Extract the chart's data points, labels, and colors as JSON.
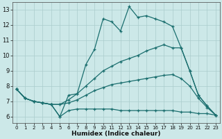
{
  "xlabel": "Humidex (Indice chaleur)",
  "bg_color": "#cce8e8",
  "grid_color": "#aacccc",
  "line_color": "#1a6e6e",
  "xlim": [
    -0.5,
    23.5
  ],
  "ylim": [
    5.6,
    13.5
  ],
  "xticks": [
    0,
    1,
    2,
    3,
    4,
    5,
    6,
    7,
    8,
    9,
    10,
    11,
    12,
    13,
    14,
    15,
    16,
    17,
    18,
    19,
    20,
    21,
    22,
    23
  ],
  "yticks": [
    6,
    7,
    8,
    9,
    10,
    11,
    12,
    13
  ],
  "lines": [
    {
      "x": [
        0,
        1,
        2,
        3,
        4,
        5,
        6,
        7,
        8,
        9,
        10,
        11,
        12,
        13,
        14,
        15,
        16,
        17,
        18,
        19,
        20,
        21,
        22,
        23
      ],
      "y": [
        7.8,
        7.2,
        7.0,
        6.9,
        6.8,
        6.0,
        7.4,
        7.5,
        9.4,
        10.4,
        12.4,
        12.2,
        11.6,
        13.2,
        12.5,
        12.6,
        12.4,
        12.2,
        11.9,
        10.5,
        9.0,
        7.4,
        6.7,
        6.1
      ]
    },
    {
      "x": [
        0,
        1,
        2,
        3,
        4,
        5,
        6,
        7,
        8,
        9,
        10,
        11,
        12,
        13,
        14,
        15,
        16,
        17,
        18,
        19,
        20,
        21,
        22,
        23
      ],
      "y": [
        7.8,
        7.2,
        7.0,
        6.9,
        6.8,
        6.8,
        7.1,
        7.5,
        8.0,
        8.5,
        9.0,
        9.3,
        9.6,
        9.8,
        10.0,
        10.3,
        10.5,
        10.7,
        10.5,
        10.5,
        9.0,
        7.4,
        6.7,
        6.1
      ]
    },
    {
      "x": [
        0,
        1,
        2,
        3,
        4,
        5,
        6,
        7,
        8,
        9,
        10,
        11,
        12,
        13,
        14,
        15,
        16,
        17,
        18,
        19,
        20,
        21,
        22,
        23
      ],
      "y": [
        7.8,
        7.2,
        7.0,
        6.9,
        6.8,
        6.8,
        6.9,
        7.1,
        7.4,
        7.7,
        7.9,
        8.1,
        8.2,
        8.3,
        8.4,
        8.5,
        8.6,
        8.7,
        8.75,
        8.5,
        8.0,
        7.2,
        6.6,
        6.1
      ]
    },
    {
      "x": [
        0,
        1,
        2,
        3,
        4,
        5,
        6,
        7,
        8,
        9,
        10,
        11,
        12,
        13,
        14,
        15,
        16,
        17,
        18,
        19,
        20,
        21,
        22,
        23
      ],
      "y": [
        7.8,
        7.2,
        7.0,
        6.9,
        6.8,
        6.0,
        6.4,
        6.5,
        6.5,
        6.5,
        6.5,
        6.5,
        6.4,
        6.4,
        6.4,
        6.4,
        6.4,
        6.4,
        6.4,
        6.3,
        6.3,
        6.2,
        6.2,
        6.1
      ]
    }
  ]
}
